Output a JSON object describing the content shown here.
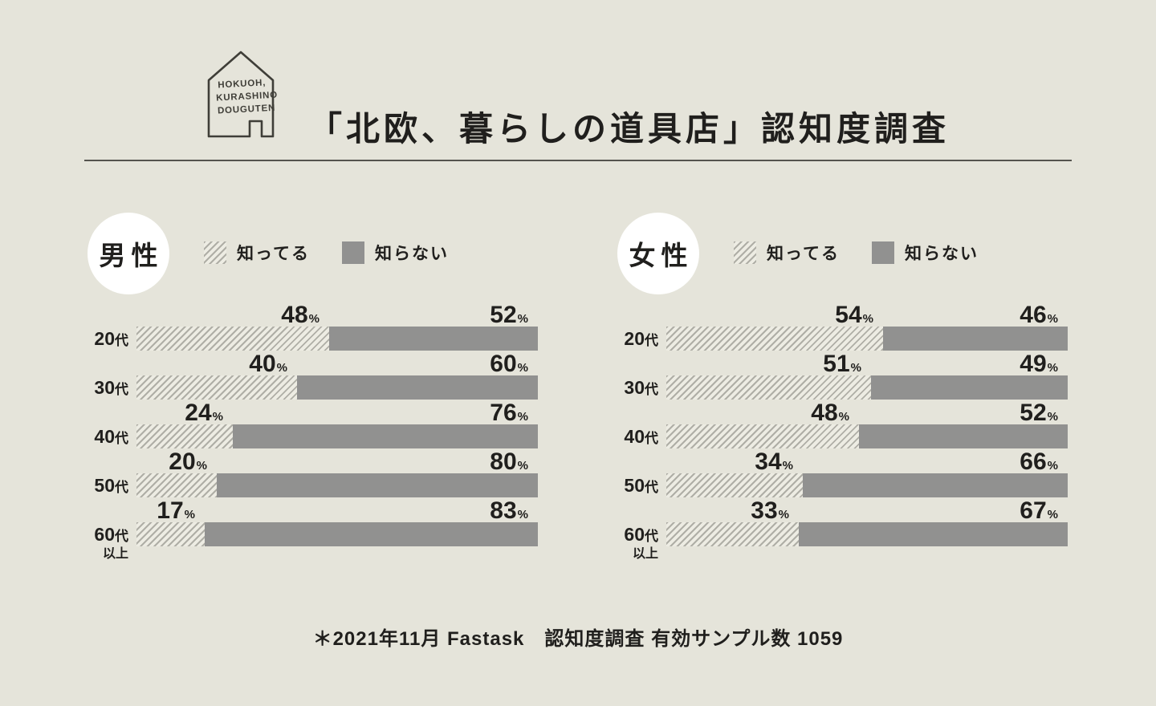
{
  "header": {
    "logo": {
      "line1": "HOKUOH,",
      "line2": "KURASHINO",
      "line3": "DOUGUTEN"
    }
  },
  "footer": {
    "note": "＊2021年11月 Fastask　認知度調査 有効サンプル数 1059"
  },
  "colors": {
    "background": "#e5e4da",
    "bar_solid_gray": "#919190",
    "hatch_line": "#afaea6",
    "hatch_background": "#edece3",
    "text": "#201f1d",
    "circle_background": "#ffffff",
    "divider": "#55544e"
  },
  "chart_data": {
    "type": "bar",
    "orientation": "horizontal",
    "stacked": true,
    "unit": "%",
    "title": "「北欧、暮らしの道具店」認知度調査",
    "footnote": "＊2021年11月 Fastask　認知度調査 有効サンプル数 1059",
    "categories": [
      "20代",
      "30代",
      "40代",
      "50代",
      "60代以上"
    ],
    "xlim": [
      0,
      100
    ],
    "legend_position": "top",
    "groups": [
      {
        "name": "男性",
        "series": [
          {
            "name": "知ってる",
            "style": "hatched",
            "values": [
              48,
              40,
              24,
              20,
              17
            ]
          },
          {
            "name": "知らない",
            "style": "solid",
            "values": [
              52,
              60,
              76,
              80,
              83
            ]
          }
        ]
      },
      {
        "name": "女性",
        "series": [
          {
            "name": "知ってる",
            "style": "hatched",
            "values": [
              54,
              51,
              48,
              34,
              33
            ]
          },
          {
            "name": "知らない",
            "style": "solid",
            "values": [
              46,
              49,
              52,
              66,
              67
            ]
          }
        ]
      }
    ]
  }
}
